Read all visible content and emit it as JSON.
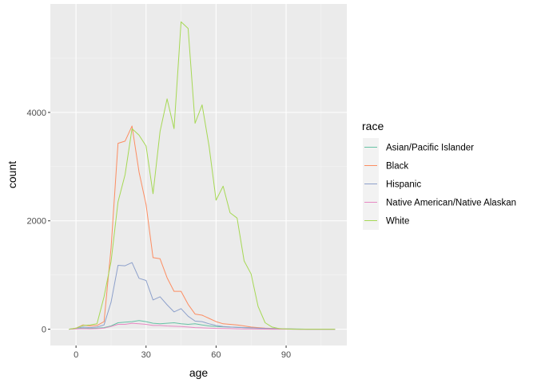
{
  "chart_data": {
    "type": "line",
    "xlabel": "age",
    "ylabel": "count",
    "xlim": [
      -11,
      116
    ],
    "ylim": [
      -300,
      6000
    ],
    "xticks": [
      0,
      30,
      60,
      90
    ],
    "yticks": [
      0,
      2000,
      4000
    ],
    "legend": {
      "title": "race",
      "position": "right"
    },
    "grid": true,
    "x": [
      -3,
      0,
      3,
      6,
      9,
      12,
      15,
      18,
      21,
      24,
      27,
      30,
      33,
      36,
      39,
      42,
      45,
      48,
      51,
      54,
      57,
      60,
      63,
      66,
      69,
      72,
      75,
      78,
      81,
      84,
      87,
      90,
      93,
      96,
      99,
      102,
      105,
      108,
      111
    ],
    "series": [
      {
        "name": "Asian/Pacific Islander",
        "color": "#66c2a5",
        "values": [
          0,
          10,
          20,
          15,
          20,
          30,
          60,
          120,
          130,
          140,
          160,
          140,
          110,
          100,
          110,
          120,
          100,
          90,
          100,
          80,
          60,
          50,
          45,
          40,
          35,
          30,
          25,
          20,
          15,
          12,
          10,
          8,
          5,
          3,
          1,
          0,
          0,
          0,
          0
        ]
      },
      {
        "name": "Black",
        "color": "#fc8d62",
        "values": [
          0,
          20,
          80,
          60,
          70,
          140,
          1500,
          3430,
          3470,
          3750,
          2900,
          2300,
          1320,
          1300,
          950,
          700,
          700,
          460,
          280,
          260,
          200,
          140,
          100,
          90,
          80,
          60,
          40,
          30,
          20,
          15,
          10,
          5,
          3,
          0,
          0,
          0,
          0,
          0,
          0
        ]
      },
      {
        "name": "Hispanic",
        "color": "#8da0cb",
        "values": [
          0,
          15,
          40,
          30,
          40,
          80,
          500,
          1180,
          1170,
          1230,
          940,
          900,
          540,
          600,
          450,
          320,
          380,
          240,
          150,
          140,
          100,
          70,
          50,
          40,
          35,
          30,
          25,
          20,
          15,
          10,
          8,
          5,
          2,
          0,
          0,
          0,
          0,
          0,
          0
        ]
      },
      {
        "name": "Native American/Native Alaskan",
        "color": "#e78ac3",
        "values": [
          0,
          5,
          10,
          8,
          10,
          20,
          50,
          90,
          90,
          110,
          100,
          90,
          70,
          70,
          60,
          55,
          50,
          40,
          30,
          25,
          20,
          15,
          12,
          10,
          8,
          6,
          4,
          3,
          2,
          1,
          0,
          0,
          0,
          0,
          0,
          0,
          0,
          0,
          0
        ]
      },
      {
        "name": "White",
        "color": "#a6d854",
        "values": [
          0,
          20,
          70,
          80,
          100,
          600,
          1250,
          2350,
          2850,
          3700,
          3580,
          3380,
          2500,
          3650,
          4250,
          3700,
          5670,
          5550,
          3800,
          4140,
          3380,
          2380,
          2640,
          2150,
          2050,
          1260,
          1020,
          420,
          120,
          40,
          10,
          5,
          0,
          0,
          0,
          0,
          0,
          0,
          0
        ]
      }
    ]
  }
}
